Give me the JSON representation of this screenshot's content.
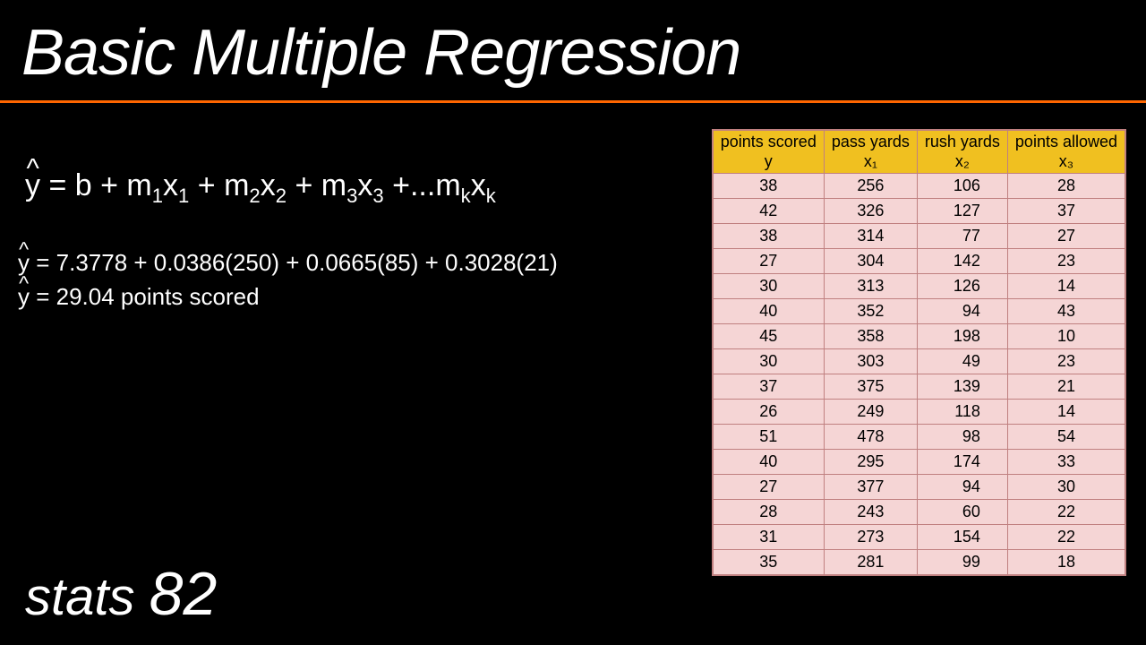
{
  "title": "Basic Multiple Regression",
  "footer_label": "stats",
  "footer_number": "82",
  "formula_general": {
    "lhs": "y",
    "rhs": " = b + m",
    "terms": [
      "x",
      "x",
      "x",
      "x"
    ],
    "full_text": "ŷ = b + m₁x₁ + m₂x₂ + m₃x₃ +...mₖxₖ"
  },
  "formula_numeric": "ŷ = 7.3778 + 0.0386(250) + 0.0665(85) + 0.3028(21)",
  "formula_result": "ŷ = 29.04 points scored",
  "table": {
    "columns": [
      {
        "label": "points scored",
        "var": "y"
      },
      {
        "label": "pass yards",
        "var": "x₁"
      },
      {
        "label": "rush yards",
        "var": "x₂"
      },
      {
        "label": "points allowed",
        "var": "x₃"
      }
    ],
    "rows": [
      [
        38,
        256,
        106,
        28
      ],
      [
        42,
        326,
        127,
        37
      ],
      [
        38,
        314,
        77,
        27
      ],
      [
        27,
        304,
        142,
        23
      ],
      [
        30,
        313,
        126,
        14
      ],
      [
        40,
        352,
        94,
        43
      ],
      [
        45,
        358,
        198,
        10
      ],
      [
        30,
        303,
        49,
        23
      ],
      [
        37,
        375,
        139,
        21
      ],
      [
        26,
        249,
        118,
        14
      ],
      [
        51,
        478,
        98,
        54
      ],
      [
        40,
        295,
        174,
        33
      ],
      [
        27,
        377,
        94,
        30
      ],
      [
        28,
        243,
        60,
        22
      ],
      [
        31,
        273,
        154,
        22
      ],
      [
        35,
        281,
        99,
        18
      ]
    ],
    "header_bg": "#f0c020",
    "cell_bg": "#f5d5d5",
    "border_color": "#c08080"
  },
  "colors": {
    "background": "#000000",
    "text": "#ffffff",
    "divider": "#ff6600"
  }
}
